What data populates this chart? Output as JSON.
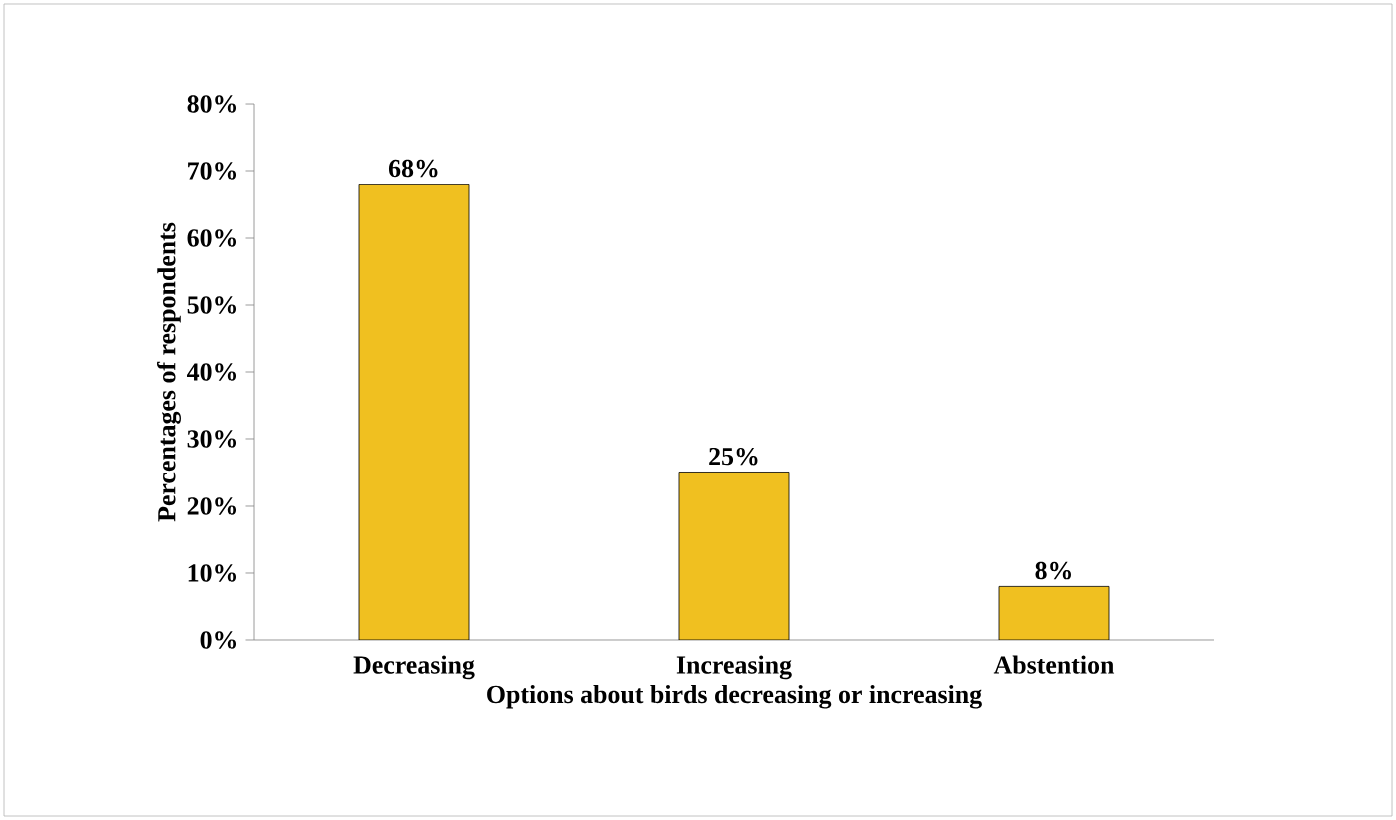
{
  "chart_data": {
    "type": "bar",
    "xlabel": "Options about birds decreasing or increasing",
    "ylabel": "Percentages of respondents",
    "categories": [
      "Decreasing",
      "Increasing",
      "Abstention"
    ],
    "values": [
      68,
      25,
      8
    ],
    "value_labels": [
      "68%",
      "25%",
      "8%"
    ],
    "color": "#f0c020",
    "ylim": [
      0,
      80
    ],
    "yticks": [
      {
        "value": 0,
        "label": "0%"
      },
      {
        "value": 10,
        "label": "10%"
      },
      {
        "value": 20,
        "label": "20%"
      },
      {
        "value": 30,
        "label": "30%"
      },
      {
        "value": 40,
        "label": "40%"
      },
      {
        "value": 50,
        "label": "50%"
      },
      {
        "value": 60,
        "label": "60%"
      },
      {
        "value": 70,
        "label": "70%"
      },
      {
        "value": 80,
        "label": "80%"
      }
    ],
    "grid": false
  }
}
